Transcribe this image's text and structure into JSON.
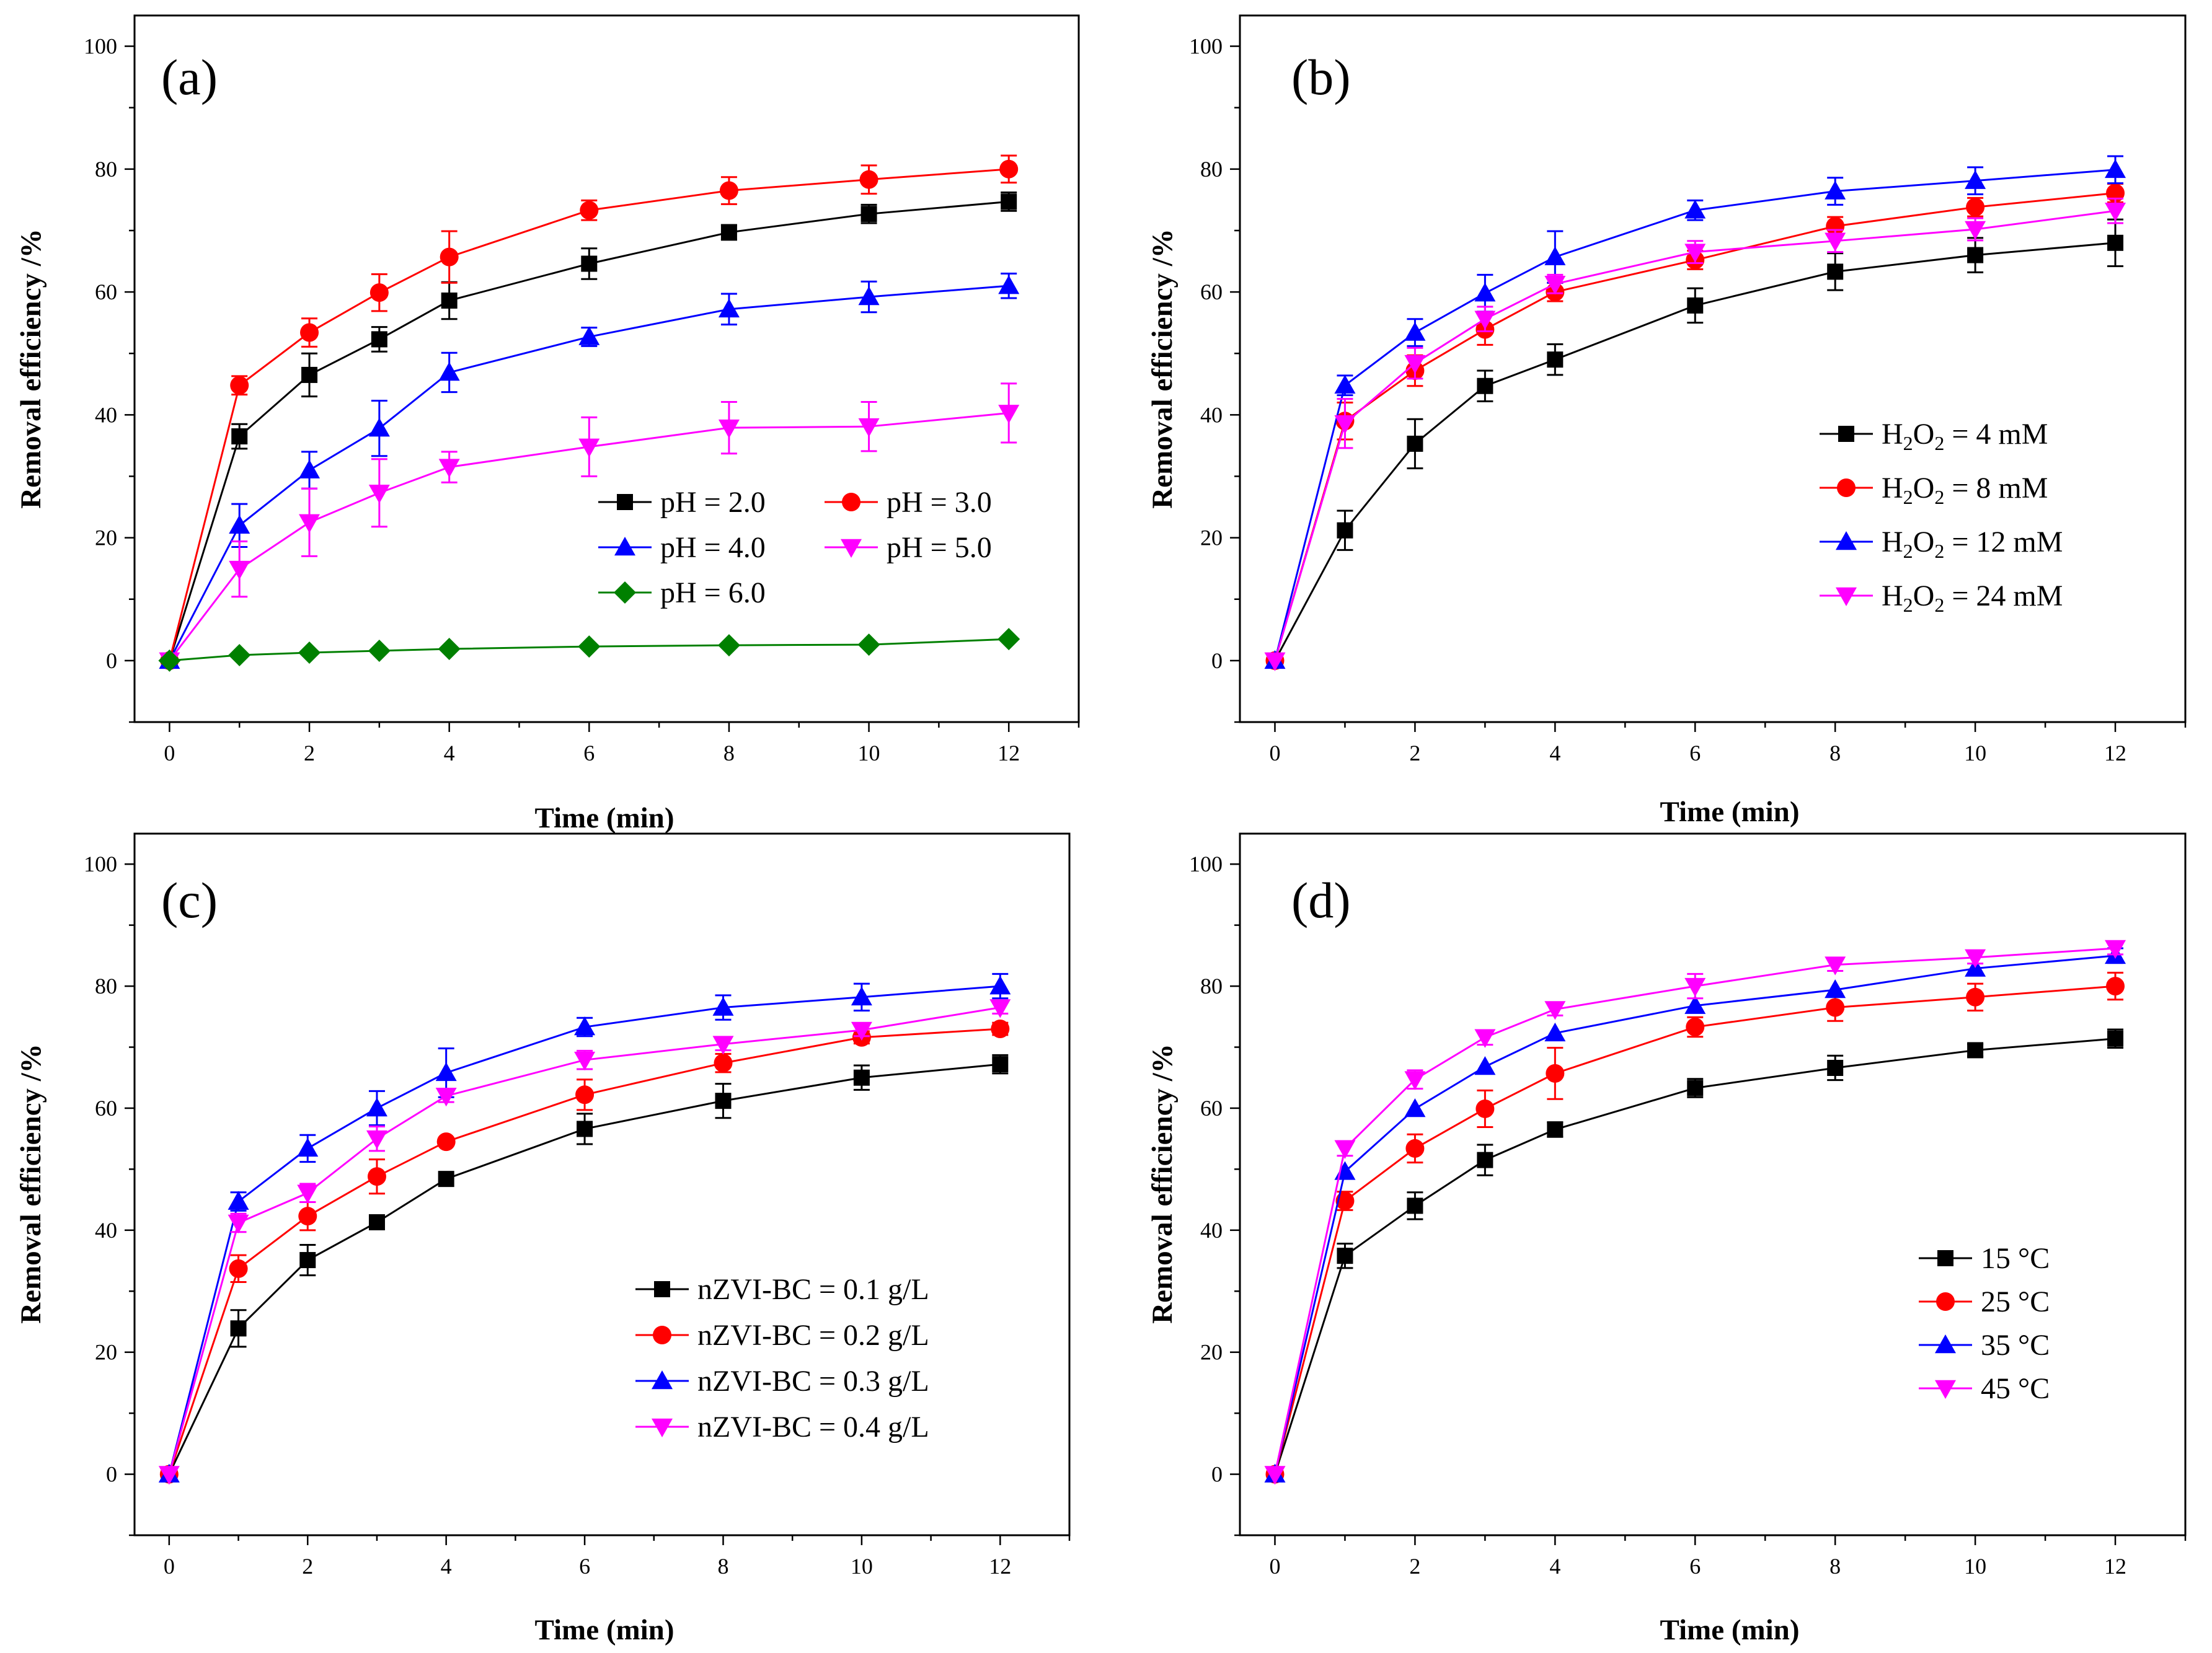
{
  "chart_data": [
    {
      "type": "line",
      "panel_label": "(a)",
      "xlabel": "Time (min)",
      "ylabel": "Removal efficiency /%",
      "xlim": [
        -0.5,
        13
      ],
      "ylim": [
        -10,
        105
      ],
      "xticks": [
        0,
        2,
        4,
        6,
        8,
        10,
        12
      ],
      "yticks": [
        0,
        20,
        40,
        60,
        80,
        100
      ],
      "x": [
        0,
        1,
        2,
        3,
        4,
        6,
        8,
        10,
        12
      ],
      "legend_layout": "two-column",
      "series": [
        {
          "name": "pH = 2.0",
          "color": "#000000",
          "marker": "square",
          "values": [
            0,
            36.5,
            46.5,
            52.3,
            58.6,
            64.6,
            69.7,
            72.7,
            74.7
          ],
          "errors": [
            0,
            2.0,
            3.5,
            2.0,
            3.0,
            2.5,
            1.2,
            1.5,
            1.5
          ]
        },
        {
          "name": "pH = 3.0",
          "color": "#ff0000",
          "marker": "circle",
          "values": [
            0,
            44.8,
            53.4,
            59.9,
            65.7,
            73.3,
            76.5,
            78.3,
            80.0
          ],
          "errors": [
            0,
            1.5,
            2.3,
            3.0,
            4.2,
            1.6,
            2.2,
            2.3,
            2.2
          ]
        },
        {
          "name": "pH = 4.0",
          "color": "#0000ff",
          "marker": "triangle-up",
          "values": [
            0,
            22.0,
            31.0,
            37.8,
            46.9,
            52.7,
            57.2,
            59.2,
            61.0
          ],
          "errors": [
            0,
            3.5,
            3.0,
            4.5,
            3.2,
            1.5,
            2.5,
            2.5,
            2.0
          ]
        },
        {
          "name": "pH = 5.0",
          "color": "#ff00ff",
          "marker": "triangle-down",
          "values": [
            0,
            14.9,
            22.5,
            27.3,
            31.5,
            34.8,
            37.9,
            38.1,
            40.3
          ],
          "errors": [
            0,
            4.5,
            5.5,
            5.5,
            2.5,
            4.8,
            4.2,
            4.0,
            4.8
          ]
        },
        {
          "name": "pH = 6.0",
          "color": "#008000",
          "marker": "diamond",
          "values": [
            0,
            0.9,
            1.3,
            1.6,
            1.9,
            2.3,
            2.5,
            2.6,
            3.5
          ],
          "errors": [
            0,
            0,
            0,
            0,
            0,
            0,
            0,
            0,
            0
          ]
        }
      ]
    },
    {
      "type": "line",
      "panel_label": "(b)",
      "xlabel": "Time (min)",
      "ylabel": "Removal efficiency /%",
      "xlim": [
        -0.5,
        13
      ],
      "ylim": [
        -10,
        105
      ],
      "xticks": [
        0,
        2,
        4,
        6,
        8,
        10,
        12
      ],
      "yticks": [
        0,
        20,
        40,
        60,
        80,
        100
      ],
      "x": [
        0,
        1,
        2,
        3,
        4,
        6,
        8,
        10,
        12
      ],
      "legend_layout": "one-column",
      "series": [
        {
          "name": "H2O2 = 4 mM",
          "name_parts": [
            "H",
            "2",
            "O",
            "2",
            " = 4 mM"
          ],
          "color": "#000000",
          "marker": "square",
          "values": [
            0,
            21.2,
            35.3,
            44.7,
            49.0,
            57.8,
            63.3,
            66.0,
            68.0
          ],
          "errors": [
            0,
            3.2,
            4.0,
            2.5,
            2.5,
            2.8,
            3.0,
            2.8,
            3.8
          ]
        },
        {
          "name": "H2O2 = 8 mM",
          "name_parts": [
            "H",
            "2",
            "O",
            "2",
            " = 8 mM"
          ],
          "color": "#ff0000",
          "marker": "circle",
          "values": [
            0,
            39.0,
            47.2,
            53.9,
            60.0,
            65.2,
            70.7,
            73.8,
            76.1
          ],
          "errors": [
            0,
            3.0,
            2.5,
            2.5,
            1.5,
            1.5,
            1.5,
            1.5,
            1.5
          ]
        },
        {
          "name": "H2O2 = 12 mM",
          "name_parts": [
            "H",
            "2",
            "O",
            "2",
            " = 12 mM"
          ],
          "color": "#0000ff",
          "marker": "triangle-up",
          "values": [
            0,
            44.8,
            53.4,
            59.8,
            65.7,
            73.3,
            76.4,
            78.1,
            79.9
          ],
          "errors": [
            0,
            1.6,
            2.2,
            3.0,
            4.2,
            1.6,
            2.2,
            2.2,
            2.2
          ]
        },
        {
          "name": "H2O2 = 24 mM",
          "name_parts": [
            "H",
            "2",
            "O",
            "2",
            " = 24 mM"
          ],
          "color": "#ff00ff",
          "marker": "triangle-down",
          "values": [
            0,
            38.6,
            48.4,
            55.6,
            61.3,
            66.5,
            68.3,
            70.2,
            73.2
          ],
          "errors": [
            0,
            4.0,
            2.5,
            2.0,
            1.5,
            1.8,
            1.8,
            1.8,
            2.0
          ]
        }
      ]
    },
    {
      "type": "line",
      "panel_label": "(c)",
      "xlabel": "Time (min)",
      "ylabel": "Removal efficiency /%",
      "xlim": [
        -0.5,
        13
      ],
      "ylim": [
        -10,
        105
      ],
      "xticks": [
        0,
        2,
        4,
        6,
        8,
        10,
        12
      ],
      "yticks": [
        0,
        20,
        40,
        60,
        80,
        100
      ],
      "x": [
        0,
        1,
        2,
        3,
        4,
        6,
        8,
        10,
        12
      ],
      "legend_layout": "one-column",
      "series": [
        {
          "name": "nZVI-BC = 0.1 g/L",
          "color": "#000000",
          "marker": "square",
          "values": [
            0,
            23.9,
            35.1,
            41.3,
            48.4,
            56.6,
            61.2,
            65.0,
            67.2
          ],
          "errors": [
            0,
            3.0,
            2.5,
            0,
            0,
            2.5,
            2.8,
            2.0,
            1.5
          ]
        },
        {
          "name": "nZVI-BC = 0.2 g/L",
          "color": "#ff0000",
          "marker": "circle",
          "values": [
            0,
            33.7,
            42.3,
            48.8,
            54.5,
            62.2,
            67.4,
            71.6,
            73.0
          ],
          "errors": [
            0,
            2.2,
            2.3,
            2.8,
            0,
            2.5,
            1.5,
            1.0,
            1.0
          ]
        },
        {
          "name": "nZVI-BC = 0.3 g/L",
          "color": "#0000ff",
          "marker": "triangle-up",
          "values": [
            0,
            44.7,
            53.4,
            60.0,
            65.8,
            73.3,
            76.5,
            78.2,
            80.0
          ],
          "errors": [
            0,
            1.5,
            2.2,
            2.8,
            4.0,
            1.5,
            2.0,
            2.2,
            2.0
          ]
        },
        {
          "name": "nZVI-BC = 0.4 g/L",
          "color": "#ff00ff",
          "marker": "triangle-down",
          "values": [
            0,
            41.2,
            46.1,
            55.0,
            62.0,
            67.9,
            70.5,
            72.8,
            76.5
          ],
          "errors": [
            0,
            1.5,
            1.5,
            2.0,
            1.0,
            1.5,
            1.0,
            1.0,
            1.0
          ]
        }
      ]
    },
    {
      "type": "line",
      "panel_label": "(d)",
      "xlabel": "Time (min)",
      "ylabel": "Removal efficiency /%",
      "xlim": [
        -0.5,
        13
      ],
      "ylim": [
        -10,
        105
      ],
      "xticks": [
        0,
        2,
        4,
        6,
        8,
        10,
        12
      ],
      "yticks": [
        0,
        20,
        40,
        60,
        80,
        100
      ],
      "x": [
        0,
        1,
        2,
        3,
        4,
        6,
        8,
        10,
        12
      ],
      "legend_layout": "one-column",
      "series": [
        {
          "name": "15 °C",
          "color": "#000000",
          "marker": "square",
          "values": [
            0,
            35.8,
            44.0,
            51.5,
            56.5,
            63.3,
            66.6,
            69.5,
            71.4
          ],
          "errors": [
            0,
            2.0,
            2.2,
            2.5,
            1.2,
            1.5,
            2.0,
            1.0,
            1.5
          ]
        },
        {
          "name": "25 °C",
          "color": "#ff0000",
          "marker": "circle",
          "values": [
            0,
            44.8,
            53.4,
            59.9,
            65.7,
            73.3,
            76.5,
            78.2,
            80.0
          ],
          "errors": [
            0,
            1.5,
            2.3,
            3.0,
            4.2,
            1.6,
            2.2,
            2.2,
            2.2
          ]
        },
        {
          "name": "35 °C",
          "color": "#0000ff",
          "marker": "triangle-up",
          "values": [
            0,
            49.6,
            59.9,
            66.8,
            72.3,
            76.8,
            79.4,
            82.9,
            85.0
          ],
          "errors": [
            0,
            0,
            0,
            0,
            0,
            0,
            0,
            0,
            1.2
          ]
        },
        {
          "name": "45 °C",
          "color": "#ff00ff",
          "marker": "triangle-down",
          "values": [
            0,
            53.4,
            64.7,
            71.6,
            76.2,
            80.0,
            83.5,
            84.7,
            86.2
          ],
          "errors": [
            0,
            1.2,
            1.5,
            1.2,
            1.0,
            2.0,
            1.0,
            1.0,
            1.0
          ]
        }
      ]
    }
  ]
}
